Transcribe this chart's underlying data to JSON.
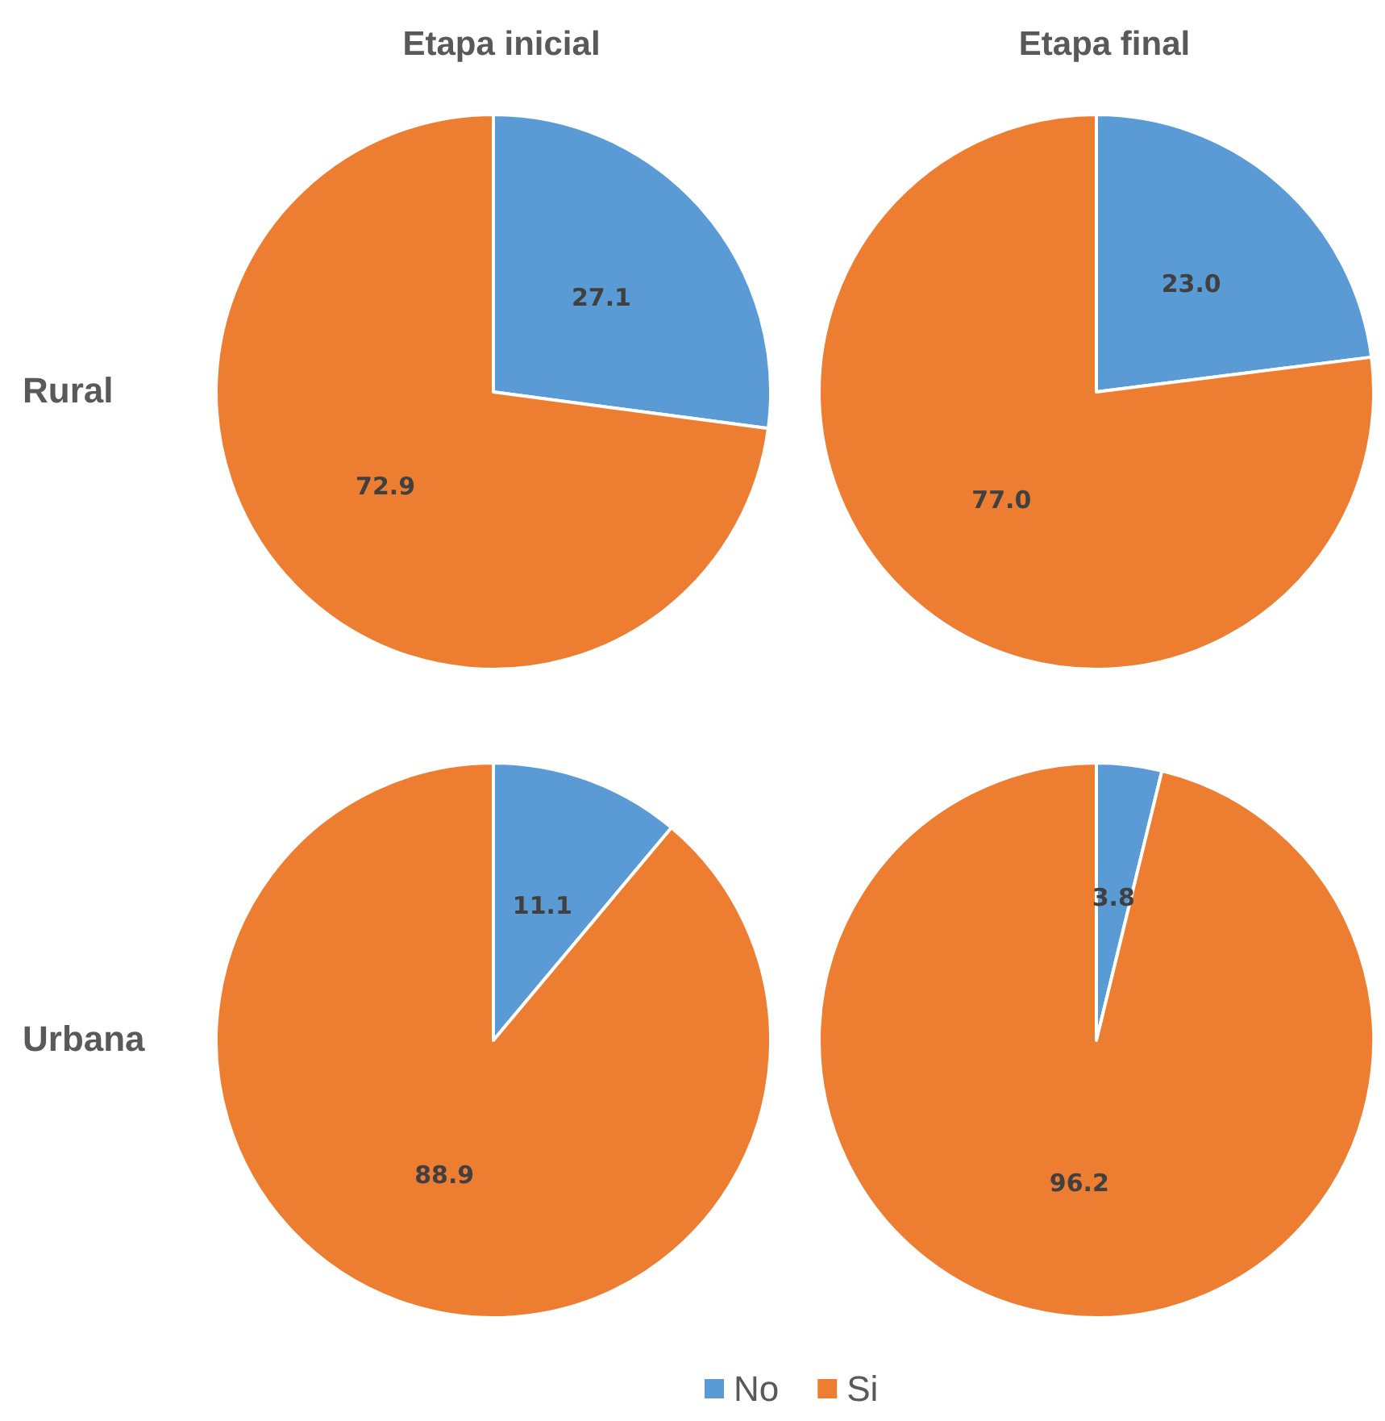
{
  "chart_data": [
    {
      "type": "pie",
      "title": "Etapa inicial",
      "ylabel": "Rural",
      "categories": [
        null,
        null
      ],
      "values": [
        27.1,
        72.9
      ],
      "colors": [
        "#5b9bd5",
        "#ed7d31"
      ],
      "value_labels": [
        "27.1",
        "72.9"
      ]
    },
    {
      "type": "pie",
      "title": "Etapa final",
      "categories": [
        null,
        null
      ],
      "values": [
        23.0,
        77.0
      ],
      "colors": [
        "#5b9bd5",
        "#ed7d31"
      ],
      "value_labels": [
        "23.0",
        "77.0"
      ]
    },
    {
      "type": "pie",
      "ylabel": "Urbana",
      "categories": [
        null,
        null
      ],
      "values": [
        11.1,
        88.9
      ],
      "colors": [
        "#5b9bd5",
        "#ed7d31"
      ],
      "value_labels": [
        "11.1",
        "88.9"
      ]
    },
    {
      "type": "pie",
      "categories": [
        "No",
        "Si"
      ],
      "values": [
        3.8,
        96.2
      ],
      "colors": [
        "#5b9bd5",
        "#ed7d31"
      ],
      "value_labels": [
        "3.8",
        "96.2"
      ],
      "legend": "bottom"
    }
  ]
}
